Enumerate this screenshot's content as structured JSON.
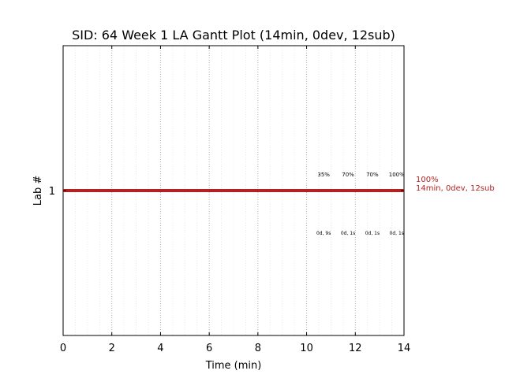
{
  "chart_data": {
    "type": "gantt",
    "title": "SID: 64 Week 1 LA Gantt Plot (14min, 0dev, 12sub)",
    "xlabel": "Time (min)",
    "ylabel": "Lab #",
    "xlim": [
      0,
      14
    ],
    "x_ticks": [
      "0",
      "2",
      "4",
      "6",
      "8",
      "10",
      "12",
      "14"
    ],
    "y_ticks": [
      "1"
    ],
    "grid": "vertical dotted",
    "bar_color": "#b22222",
    "bars": [
      {
        "lab": "1",
        "start": 0,
        "end": 14,
        "label_line1": "100%",
        "label_line2": "14min, 0dev, 12sub"
      }
    ],
    "submissions": [
      {
        "time": 10.7,
        "percent": "35%",
        "elapsed": "0d, 9s"
      },
      {
        "time": 11.7,
        "percent": "70%",
        "elapsed": "0d, 1s"
      },
      {
        "time": 12.7,
        "percent": "70%",
        "elapsed": "0d, 1s"
      },
      {
        "time": 13.7,
        "percent": "100%",
        "elapsed": "0d, 1s"
      }
    ]
  }
}
